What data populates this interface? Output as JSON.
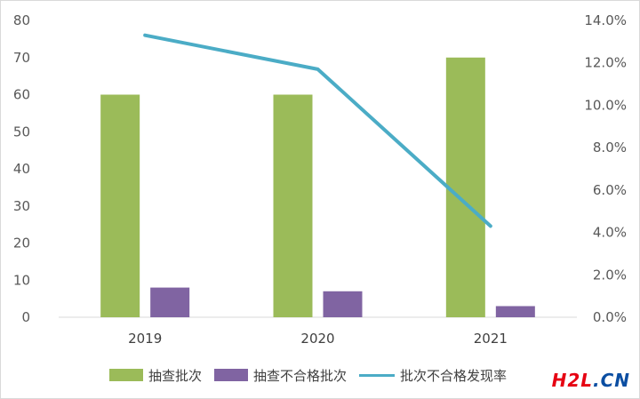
{
  "chart_data": {
    "type": "bar",
    "categories": [
      "2019",
      "2020",
      "2021"
    ],
    "series": [
      {
        "name": "抽查批次",
        "type": "bar",
        "axis": "left",
        "color": "#9bbb59",
        "values": [
          60,
          60,
          70
        ]
      },
      {
        "name": "抽查不合格批次",
        "type": "bar",
        "axis": "left",
        "color": "#8064a2",
        "values": [
          8,
          7,
          3
        ]
      },
      {
        "name": "批次不合格发现率",
        "type": "line",
        "axis": "right",
        "color": "#4bacc6",
        "values": [
          13.3,
          11.7,
          4.3
        ]
      }
    ],
    "left_axis": {
      "ylim": [
        0,
        80
      ],
      "ticks": [
        "0",
        "10",
        "20",
        "30",
        "40",
        "50",
        "60",
        "70",
        "80"
      ]
    },
    "right_axis": {
      "ylim": [
        0,
        14
      ],
      "ticks": [
        "0.0%",
        "2.0%",
        "4.0%",
        "6.0%",
        "8.0%",
        "10.0%",
        "12.0%",
        "14.0%"
      ]
    },
    "title": "",
    "xlabel": "",
    "ylabel": "",
    "grid": false,
    "legend_position": "bottom"
  },
  "watermark": {
    "part1": "H2L",
    "part2": ".CN"
  }
}
